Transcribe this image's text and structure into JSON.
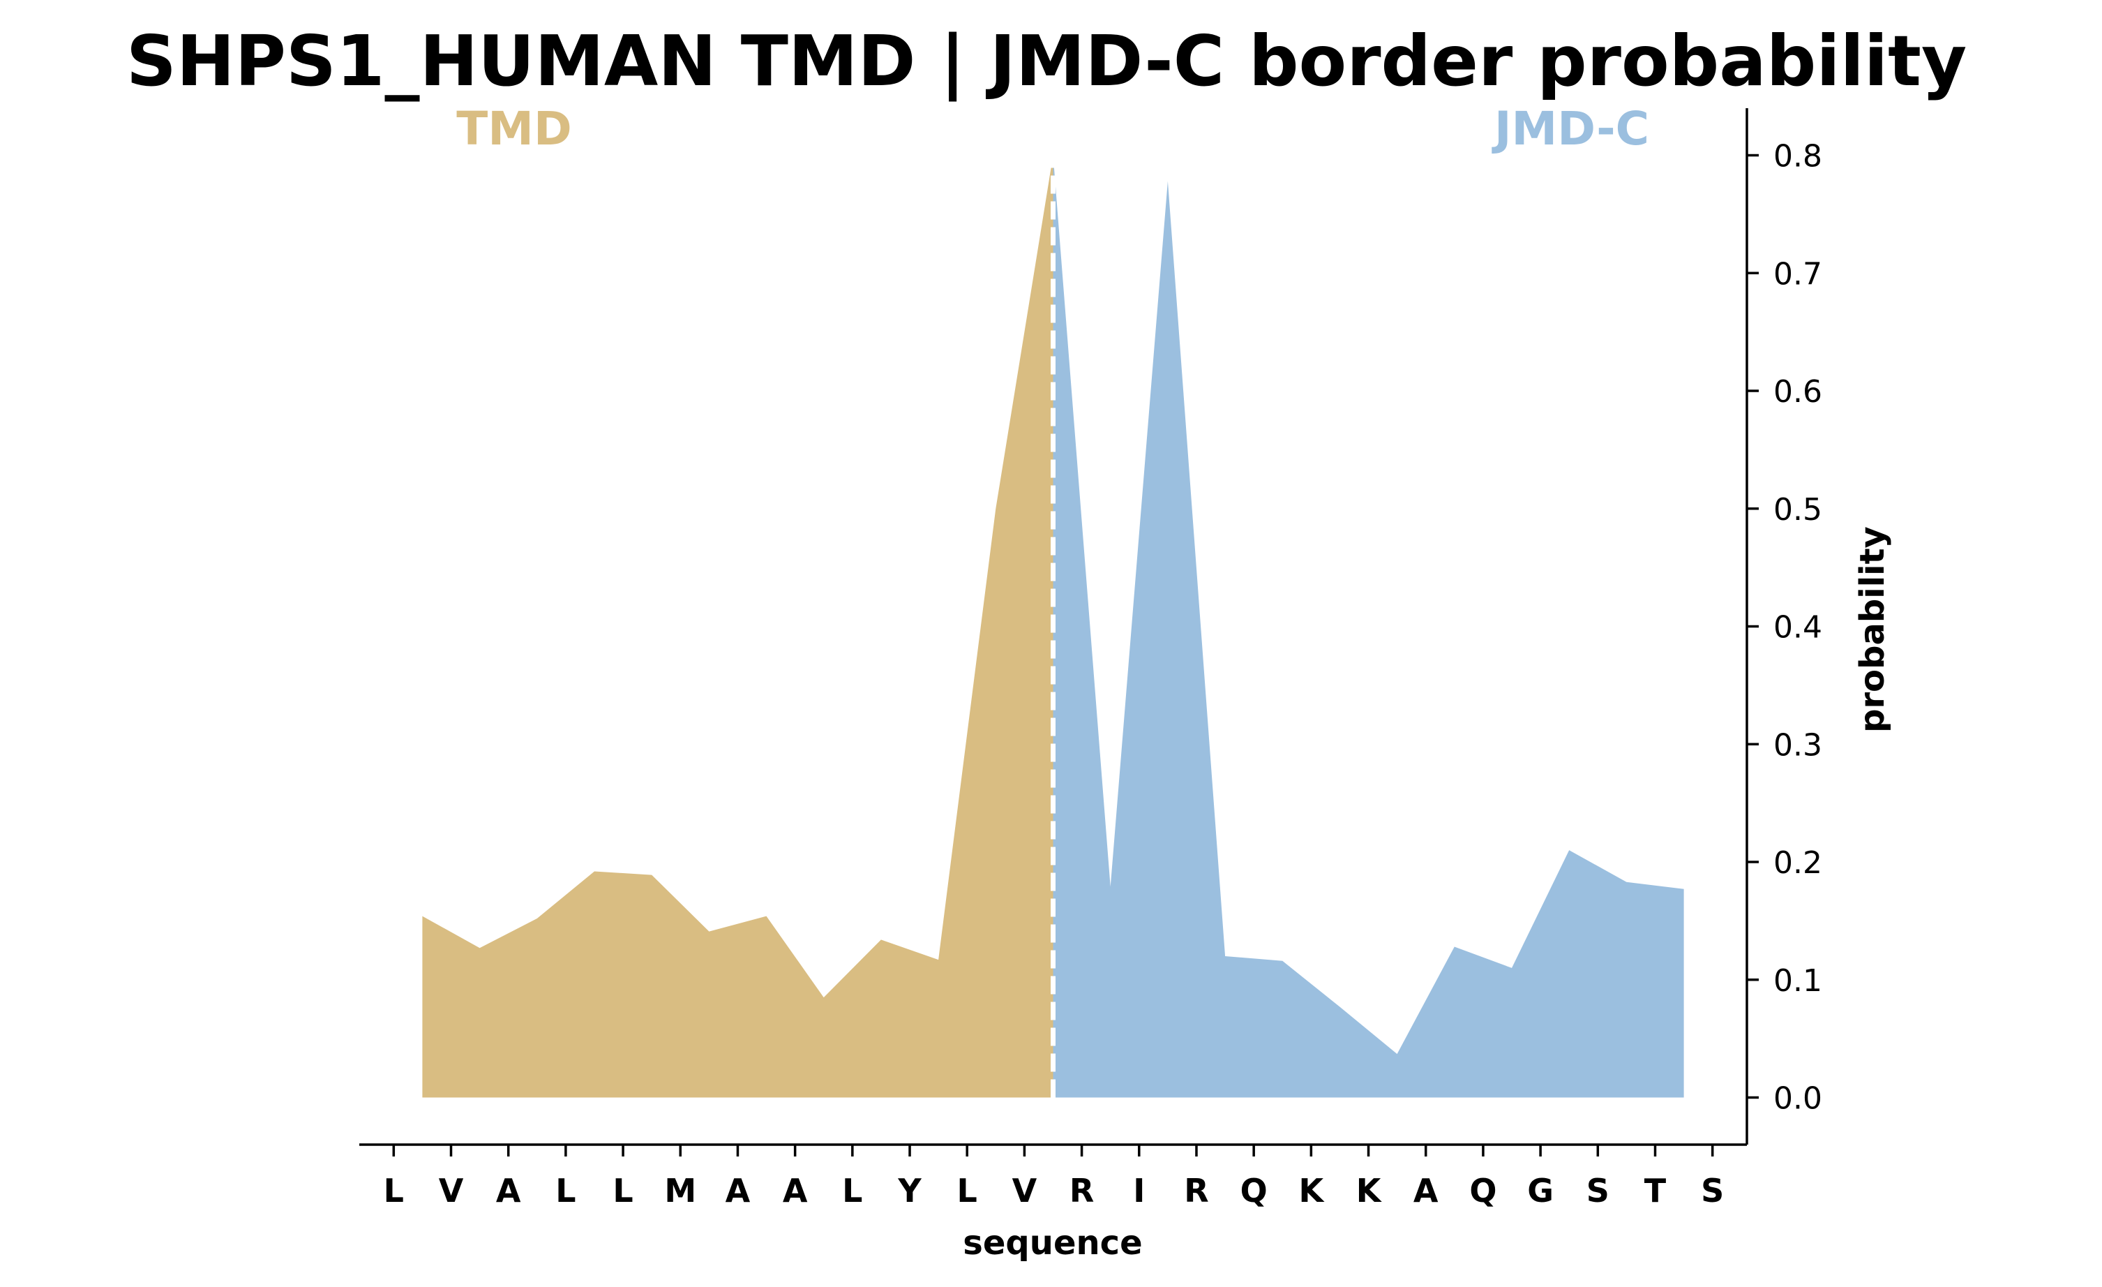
{
  "chart_data": {
    "type": "area",
    "title": "SHPS1_HUMAN TMD | JMD-C border probability",
    "xlabel": "sequence",
    "ylabel": "probability",
    "y_axis_side": "right",
    "ylim": [
      -0.04,
      0.84
    ],
    "yticks": [
      0.0,
      0.1,
      0.2,
      0.3,
      0.4,
      0.5,
      0.6,
      0.7,
      0.8
    ],
    "ytick_labels": [
      "0.0",
      "0.1",
      "0.2",
      "0.3",
      "0.4",
      "0.5",
      "0.6",
      "0.7",
      "0.8"
    ],
    "xlim": [
      -0.6,
      23.6
    ],
    "categories": [
      "L",
      "V",
      "A",
      "L",
      "L",
      "M",
      "A",
      "A",
      "L",
      "Y",
      "L",
      "V",
      "R",
      "I",
      "R",
      "Q",
      "K",
      "K",
      "A",
      "Q",
      "G",
      "S",
      "T",
      "S"
    ],
    "x": [
      0.5,
      1.5,
      2.5,
      3.5,
      4.5,
      5.5,
      6.5,
      7.5,
      8.5,
      9.5,
      10.5,
      11.5,
      12.5,
      13.5,
      14.5,
      15.5,
      16.5,
      17.5,
      18.5,
      19.5,
      20.5,
      21.5,
      22.5
    ],
    "values": [
      0.154,
      0.127,
      0.152,
      0.192,
      0.189,
      0.141,
      0.154,
      0.085,
      0.134,
      0.117,
      0.5,
      0.8,
      0.179,
      0.778,
      0.12,
      0.116,
      0.077,
      0.037,
      0.128,
      0.11,
      0.21,
      0.183,
      0.177
    ],
    "border_x": 11.5,
    "border_style": "dashed white line",
    "regions": [
      {
        "name": "TMD",
        "label": "TMD",
        "x_range": [
          0.5,
          11.5
        ],
        "color": "#D9BD82"
      },
      {
        "name": "JMD-C",
        "label": "JMD-C",
        "x_range": [
          11.5,
          22.5
        ],
        "color": "#9BBFDF"
      }
    ],
    "grid": false,
    "legend": "none"
  }
}
